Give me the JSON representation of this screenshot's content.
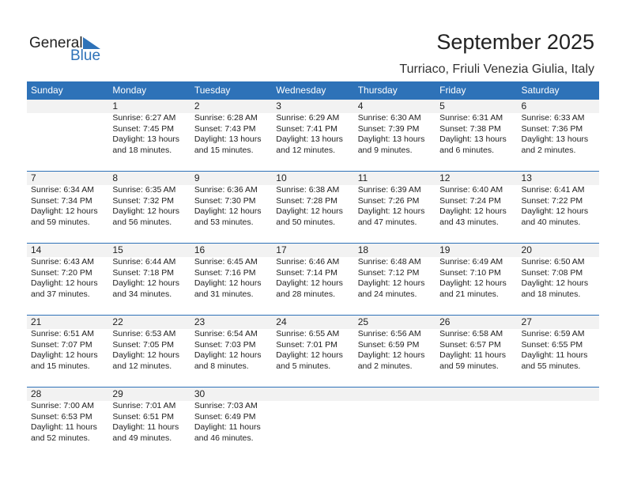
{
  "logo": {
    "line1": "General",
    "line2": "Blue"
  },
  "title": "September 2025",
  "location": "Turriaco, Friuli Venezia Giulia, Italy",
  "colors": {
    "accent": "#2e72b8",
    "band": "#f2f2f2"
  },
  "weekdays": [
    "Sunday",
    "Monday",
    "Tuesday",
    "Wednesday",
    "Thursday",
    "Friday",
    "Saturday"
  ],
  "weeks": [
    [
      null,
      {
        "day": "1",
        "sunrise": "Sunrise: 6:27 AM",
        "sunset": "Sunset: 7:45 PM",
        "daylight": "Daylight: 13 hours",
        "minutes": "and 18 minutes."
      },
      {
        "day": "2",
        "sunrise": "Sunrise: 6:28 AM",
        "sunset": "Sunset: 7:43 PM",
        "daylight": "Daylight: 13 hours",
        "minutes": "and 15 minutes."
      },
      {
        "day": "3",
        "sunrise": "Sunrise: 6:29 AM",
        "sunset": "Sunset: 7:41 PM",
        "daylight": "Daylight: 13 hours",
        "minutes": "and 12 minutes."
      },
      {
        "day": "4",
        "sunrise": "Sunrise: 6:30 AM",
        "sunset": "Sunset: 7:39 PM",
        "daylight": "Daylight: 13 hours",
        "minutes": "and 9 minutes."
      },
      {
        "day": "5",
        "sunrise": "Sunrise: 6:31 AM",
        "sunset": "Sunset: 7:38 PM",
        "daylight": "Daylight: 13 hours",
        "minutes": "and 6 minutes."
      },
      {
        "day": "6",
        "sunrise": "Sunrise: 6:33 AM",
        "sunset": "Sunset: 7:36 PM",
        "daylight": "Daylight: 13 hours",
        "minutes": "and 2 minutes."
      }
    ],
    [
      {
        "day": "7",
        "sunrise": "Sunrise: 6:34 AM",
        "sunset": "Sunset: 7:34 PM",
        "daylight": "Daylight: 12 hours",
        "minutes": "and 59 minutes."
      },
      {
        "day": "8",
        "sunrise": "Sunrise: 6:35 AM",
        "sunset": "Sunset: 7:32 PM",
        "daylight": "Daylight: 12 hours",
        "minutes": "and 56 minutes."
      },
      {
        "day": "9",
        "sunrise": "Sunrise: 6:36 AM",
        "sunset": "Sunset: 7:30 PM",
        "daylight": "Daylight: 12 hours",
        "minutes": "and 53 minutes."
      },
      {
        "day": "10",
        "sunrise": "Sunrise: 6:38 AM",
        "sunset": "Sunset: 7:28 PM",
        "daylight": "Daylight: 12 hours",
        "minutes": "and 50 minutes."
      },
      {
        "day": "11",
        "sunrise": "Sunrise: 6:39 AM",
        "sunset": "Sunset: 7:26 PM",
        "daylight": "Daylight: 12 hours",
        "minutes": "and 47 minutes."
      },
      {
        "day": "12",
        "sunrise": "Sunrise: 6:40 AM",
        "sunset": "Sunset: 7:24 PM",
        "daylight": "Daylight: 12 hours",
        "minutes": "and 43 minutes."
      },
      {
        "day": "13",
        "sunrise": "Sunrise: 6:41 AM",
        "sunset": "Sunset: 7:22 PM",
        "daylight": "Daylight: 12 hours",
        "minutes": "and 40 minutes."
      }
    ],
    [
      {
        "day": "14",
        "sunrise": "Sunrise: 6:43 AM",
        "sunset": "Sunset: 7:20 PM",
        "daylight": "Daylight: 12 hours",
        "minutes": "and 37 minutes."
      },
      {
        "day": "15",
        "sunrise": "Sunrise: 6:44 AM",
        "sunset": "Sunset: 7:18 PM",
        "daylight": "Daylight: 12 hours",
        "minutes": "and 34 minutes."
      },
      {
        "day": "16",
        "sunrise": "Sunrise: 6:45 AM",
        "sunset": "Sunset: 7:16 PM",
        "daylight": "Daylight: 12 hours",
        "minutes": "and 31 minutes."
      },
      {
        "day": "17",
        "sunrise": "Sunrise: 6:46 AM",
        "sunset": "Sunset: 7:14 PM",
        "daylight": "Daylight: 12 hours",
        "minutes": "and 28 minutes."
      },
      {
        "day": "18",
        "sunrise": "Sunrise: 6:48 AM",
        "sunset": "Sunset: 7:12 PM",
        "daylight": "Daylight: 12 hours",
        "minutes": "and 24 minutes."
      },
      {
        "day": "19",
        "sunrise": "Sunrise: 6:49 AM",
        "sunset": "Sunset: 7:10 PM",
        "daylight": "Daylight: 12 hours",
        "minutes": "and 21 minutes."
      },
      {
        "day": "20",
        "sunrise": "Sunrise: 6:50 AM",
        "sunset": "Sunset: 7:08 PM",
        "daylight": "Daylight: 12 hours",
        "minutes": "and 18 minutes."
      }
    ],
    [
      {
        "day": "21",
        "sunrise": "Sunrise: 6:51 AM",
        "sunset": "Sunset: 7:07 PM",
        "daylight": "Daylight: 12 hours",
        "minutes": "and 15 minutes."
      },
      {
        "day": "22",
        "sunrise": "Sunrise: 6:53 AM",
        "sunset": "Sunset: 7:05 PM",
        "daylight": "Daylight: 12 hours",
        "minutes": "and 12 minutes."
      },
      {
        "day": "23",
        "sunrise": "Sunrise: 6:54 AM",
        "sunset": "Sunset: 7:03 PM",
        "daylight": "Daylight: 12 hours",
        "minutes": "and 8 minutes."
      },
      {
        "day": "24",
        "sunrise": "Sunrise: 6:55 AM",
        "sunset": "Sunset: 7:01 PM",
        "daylight": "Daylight: 12 hours",
        "minutes": "and 5 minutes."
      },
      {
        "day": "25",
        "sunrise": "Sunrise: 6:56 AM",
        "sunset": "Sunset: 6:59 PM",
        "daylight": "Daylight: 12 hours",
        "minutes": "and 2 minutes."
      },
      {
        "day": "26",
        "sunrise": "Sunrise: 6:58 AM",
        "sunset": "Sunset: 6:57 PM",
        "daylight": "Daylight: 11 hours",
        "minutes": "and 59 minutes."
      },
      {
        "day": "27",
        "sunrise": "Sunrise: 6:59 AM",
        "sunset": "Sunset: 6:55 PM",
        "daylight": "Daylight: 11 hours",
        "minutes": "and 55 minutes."
      }
    ],
    [
      {
        "day": "28",
        "sunrise": "Sunrise: 7:00 AM",
        "sunset": "Sunset: 6:53 PM",
        "daylight": "Daylight: 11 hours",
        "minutes": "and 52 minutes."
      },
      {
        "day": "29",
        "sunrise": "Sunrise: 7:01 AM",
        "sunset": "Sunset: 6:51 PM",
        "daylight": "Daylight: 11 hours",
        "minutes": "and 49 minutes."
      },
      {
        "day": "30",
        "sunrise": "Sunrise: 7:03 AM",
        "sunset": "Sunset: 6:49 PM",
        "daylight": "Daylight: 11 hours",
        "minutes": "and 46 minutes."
      },
      null,
      null,
      null,
      null
    ]
  ]
}
